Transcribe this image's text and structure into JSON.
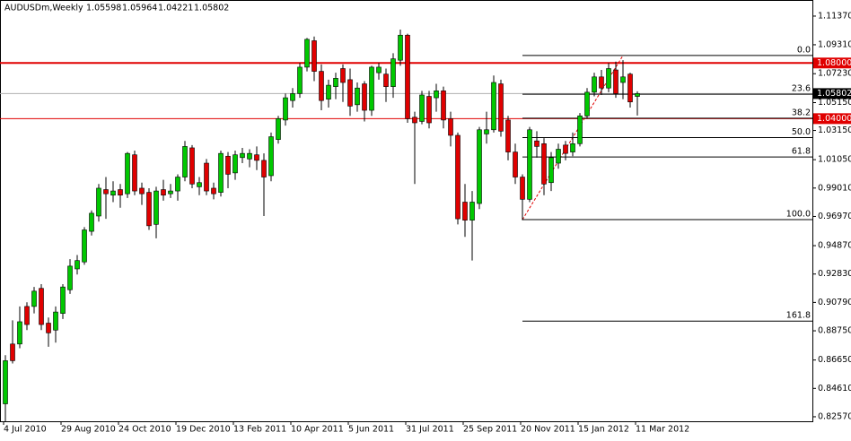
{
  "chart_data": {
    "type": "candlestick",
    "title": "AUDUSDm,Weekly",
    "categories": [
      "4 Jul 2010",
      null,
      null,
      null,
      null,
      null,
      null,
      null,
      "29 Aug 2010",
      null,
      null,
      null,
      null,
      null,
      null,
      null,
      "24 Oct 2010",
      null,
      null,
      null,
      null,
      null,
      null,
      null,
      "19 Dec 2010",
      null,
      null,
      null,
      null,
      null,
      null,
      null,
      "13 Feb 2011",
      null,
      null,
      null,
      null,
      null,
      null,
      null,
      "10 Apr 2011",
      null,
      null,
      null,
      null,
      null,
      null,
      null,
      "5 Jun 2011",
      null,
      null,
      null,
      null,
      null,
      null,
      null,
      "31 Jul 2011",
      null,
      null,
      null,
      null,
      null,
      null,
      null,
      "25 Sep 2011",
      null,
      null,
      null,
      null,
      null,
      null,
      null,
      "20 Nov 2011",
      null,
      null,
      null,
      null,
      null,
      null,
      null,
      "15 Jan 2012",
      null,
      null,
      null,
      null,
      null,
      null,
      null,
      "11 Mar 2012"
    ],
    "open": [
      0.835,
      0.878,
      0.878,
      0.905,
      0.905,
      0.918,
      0.893,
      0.888,
      0.9,
      0.917,
      0.932,
      0.937,
      0.959,
      0.97,
      0.989,
      0.985,
      0.989,
      0.986,
      1.014,
      0.99,
      0.987,
      0.964,
      0.989,
      0.986,
      0.988,
      0.998,
      1.019,
      0.991,
      1.008,
      0.99,
      0.987,
      1.013,
      1.001,
      1.012,
      1.011,
      1.014,
      1.01,
      0.999,
      1.025,
      1.039,
      1.053,
      1.058,
      1.077,
      1.096,
      1.074,
      1.054,
      1.063,
      1.076,
      1.068,
      1.05,
      1.065,
      1.046,
      1.073,
      1.072,
      1.063,
      1.082,
      1.1,
      1.041,
      1.038,
      1.056,
      1.055,
      1.06,
      1.04,
      1.028,
      0.98,
      0.967,
      0.979,
      1.029,
      1.032,
      1.065,
      1.039,
      1.016,
      0.998,
      0.982,
      1.024,
      1.022,
      0.994,
      1.008,
      1.021,
      1.016,
      1.022,
      1.042,
      1.059,
      1.07,
      1.062,
      1.075,
      1.066,
      1.072,
      1.05598
    ],
    "high": [
      0.87,
      0.895,
      0.905,
      0.908,
      0.919,
      0.921,
      0.897,
      0.905,
      0.921,
      0.939,
      0.942,
      0.962,
      0.974,
      0.993,
      0.998,
      0.995,
      0.993,
      1.016,
      1.017,
      0.994,
      0.99,
      0.991,
      0.996,
      0.993,
      1.0,
      1.024,
      1.021,
      0.998,
      1.011,
      0.994,
      1.017,
      1.016,
      1.017,
      1.019,
      1.018,
      1.02,
      1.015,
      1.03,
      1.042,
      1.058,
      1.062,
      1.08,
      1.098,
      1.099,
      1.079,
      1.068,
      1.073,
      1.079,
      1.076,
      1.066,
      1.067,
      1.078,
      1.08,
      1.076,
      1.087,
      1.104,
      1.101,
      1.045,
      1.06,
      1.06,
      1.065,
      1.063,
      1.045,
      1.03,
      0.993,
      0.988,
      1.034,
      1.045,
      1.071,
      1.068,
      1.042,
      1.022,
      1.0,
      1.034,
      1.031,
      1.026,
      1.016,
      1.022,
      1.024,
      1.03,
      1.044,
      1.062,
      1.073,
      1.075,
      1.08,
      1.081,
      1.082,
      1.073,
      1.05964
    ],
    "low": [
      0.822,
      0.864,
      0.875,
      0.888,
      0.9,
      0.888,
      0.876,
      0.879,
      0.896,
      0.914,
      0.928,
      0.935,
      0.956,
      0.966,
      0.968,
      0.98,
      0.976,
      0.983,
      0.985,
      0.978,
      0.96,
      0.954,
      0.981,
      0.983,
      0.981,
      0.995,
      0.99,
      0.985,
      0.985,
      0.982,
      0.984,
      0.99,
      0.996,
      1.008,
      1.005,
      1.003,
      0.97,
      0.995,
      1.022,
      1.035,
      1.048,
      1.055,
      1.074,
      1.067,
      1.046,
      1.048,
      1.054,
      1.052,
      1.042,
      1.045,
      1.038,
      1.042,
      1.068,
      1.052,
      1.055,
      1.078,
      1.037,
      0.993,
      1.036,
      1.033,
      1.045,
      1.033,
      1.02,
      0.964,
      0.955,
      0.938,
      0.975,
      1.022,
      1.03,
      1.027,
      1.01,
      0.993,
      0.967,
      0.98,
      1.012,
      0.985,
      0.988,
      1.004,
      1.01,
      1.013,
      1.02,
      1.04,
      1.056,
      1.057,
      1.059,
      1.055,
      1.054,
      1.048,
      1.04221
    ],
    "close": [
      0.866,
      0.866,
      0.894,
      0.892,
      0.916,
      0.892,
      0.886,
      0.901,
      0.919,
      0.934,
      0.938,
      0.96,
      0.972,
      0.99,
      0.986,
      0.988,
      0.985,
      1.015,
      0.988,
      0.986,
      0.963,
      0.988,
      0.985,
      0.988,
      0.998,
      1.02,
      0.993,
      0.994,
      0.988,
      0.986,
      1.015,
      1.0,
      1.014,
      1.015,
      1.015,
      1.01,
      0.998,
      1.027,
      1.04,
      1.055,
      1.058,
      1.077,
      1.097,
      1.074,
      1.053,
      1.064,
      1.069,
      1.066,
      1.049,
      1.062,
      1.046,
      1.077,
      1.077,
      1.063,
      1.083,
      1.1,
      1.04,
      1.037,
      1.057,
      1.037,
      1.06,
      1.039,
      1.028,
      0.968,
      0.967,
      0.98,
      1.032,
      1.032,
      1.066,
      1.031,
      1.016,
      0.998,
      0.982,
      1.032,
      1.02,
      0.993,
      1.012,
      1.018,
      1.015,
      1.022,
      1.042,
      1.059,
      1.07,
      1.062,
      1.076,
      1.058,
      1.07,
      1.052,
      1.05802
    ],
    "up_color": "#00c800",
    "down_color": "#e00000",
    "ylim": [
      0.8231,
      1.1227
    ],
    "yticks": [
      {
        "value": 1.1137,
        "label": "1.11370"
      },
      {
        "value": 1.0931,
        "label": "1.09310"
      },
      {
        "value": 1.0723,
        "label": "1.07230"
      },
      {
        "value": 1.0515,
        "label": "1.05150"
      },
      {
        "value": 1.0315,
        "label": "1.03150"
      },
      {
        "value": 1.0105,
        "label": "1.01050"
      },
      {
        "value": 0.9901,
        "label": "0.99010"
      },
      {
        "value": 0.9697,
        "label": "0.96970"
      },
      {
        "value": 0.9487,
        "label": "0.94870"
      },
      {
        "value": 0.9283,
        "label": "0.92830"
      },
      {
        "value": 0.9079,
        "label": "0.90790"
      },
      {
        "value": 0.8875,
        "label": "0.88750"
      },
      {
        "value": 0.8665,
        "label": "0.86650"
      },
      {
        "value": 0.8461,
        "label": "0.84610"
      },
      {
        "value": 0.8257,
        "label": "0.82570"
      }
    ],
    "hlines": [
      {
        "value": 1.08,
        "label": "1.08000",
        "color": "#e00000"
      },
      {
        "value": 1.04,
        "label": "1.04000",
        "color": "#e00000"
      }
    ],
    "price_line_color": "#b0b0b0",
    "fibonacci": {
      "low": 0.9674,
      "high": 1.0854,
      "low_index": 72,
      "high_index": 86,
      "trend_color": "#e00000",
      "level_color": "#000000",
      "levels": [
        {
          "value": 0,
          "label": "0.0"
        },
        23.6,
        38.2,
        {
          "value": 50,
          "label": "50.0"
        },
        61.8,
        {
          "value": 100,
          "label": "100.0"
        },
        161.8
      ]
    }
  }
}
